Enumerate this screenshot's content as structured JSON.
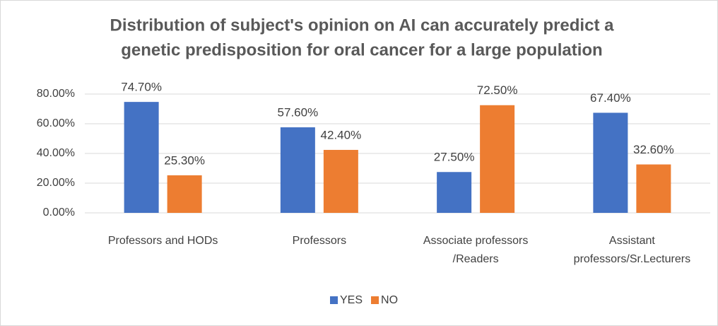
{
  "chart_data": {
    "type": "bar",
    "title": [
      "Distribution of subject's opinion on AI can accurately predict a",
      "genetic predisposition for oral cancer for a large population"
    ],
    "categories": [
      [
        "Professors and HODs"
      ],
      [
        "Professors"
      ],
      [
        "Associate professors",
        "/Readers"
      ],
      [
        "Assistant",
        "professors/Sr.Lecturers"
      ]
    ],
    "series": [
      {
        "name": "YES",
        "color": "#4472c4",
        "values": [
          74.7,
          57.6,
          27.5,
          67.4
        ],
        "value_labels": [
          "74.70%",
          "57.60%",
          "27.50%",
          "67.40%"
        ]
      },
      {
        "name": "NO",
        "color": "#ed7d31",
        "values": [
          25.3,
          42.4,
          72.5,
          32.6
        ],
        "value_labels": [
          "25.30%",
          "42.40%",
          "72.50%",
          "32.60%"
        ]
      }
    ],
    "ylim": [
      0,
      80
    ],
    "yticks": [
      {
        "value": 0,
        "label": "0.00%"
      },
      {
        "value": 20,
        "label": "20.00%"
      },
      {
        "value": 40,
        "label": "40.00%"
      },
      {
        "value": 60,
        "label": "60.00%"
      },
      {
        "value": 80,
        "label": "80.00%"
      }
    ],
    "grid": true,
    "legend": "bottom"
  }
}
